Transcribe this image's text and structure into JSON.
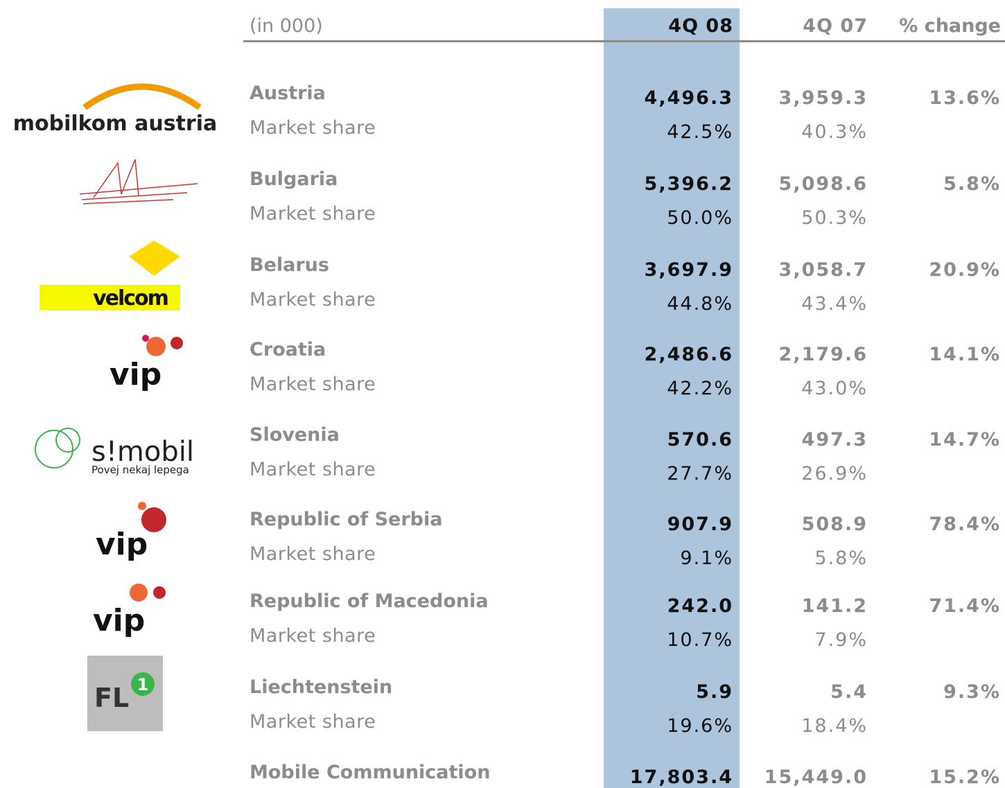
{
  "header": {
    "unit": "(in 000)",
    "columns": [
      "4Q 08",
      "4Q 07",
      "% change"
    ]
  },
  "rows": [
    {
      "country": "Austria",
      "share_label": "Market share",
      "values": [
        "4,496.3",
        "3,959.3",
        "13.6%"
      ],
      "share": [
        "42.5%",
        "40.3%"
      ]
    },
    {
      "country": "Bulgaria",
      "share_label": "Market share",
      "values": [
        "5,396.2",
        "5,098.6",
        "5.8%"
      ],
      "share": [
        "50.0%",
        "50.3%"
      ]
    },
    {
      "country": "Belarus",
      "share_label": "Market share",
      "values": [
        "3,697.9",
        "3,058.7",
        "20.9%"
      ],
      "share": [
        "44.8%",
        "43.4%"
      ]
    },
    {
      "country": "Croatia",
      "share_label": "Market share",
      "values": [
        "2,486.6",
        "2,179.6",
        "14.1%"
      ],
      "share": [
        "42.2%",
        "43.0%"
      ]
    },
    {
      "country": "Slovenia",
      "share_label": "Market share",
      "values": [
        "570.6",
        "497.3",
        "14.7%"
      ],
      "share": [
        "27.7%",
        "26.9%"
      ]
    },
    {
      "country": "Republic of Serbia",
      "share_label": "Market share",
      "values": [
        "907.9",
        "508.9",
        "78.4%"
      ],
      "share": [
        "9.1%",
        "5.8%"
      ]
    },
    {
      "country": "Republic of Macedonia",
      "share_label": "Market share",
      "values": [
        "242.0",
        "141.2",
        "71.4%"
      ],
      "share": [
        "10.7%",
        "7.9%"
      ]
    },
    {
      "country": "Liechtenstein",
      "share_label": "Market share",
      "values": [
        "5.9",
        "5.4",
        "9.3%"
      ],
      "share": [
        "19.6%",
        "18.4%"
      ]
    }
  ],
  "total": {
    "label": "Mobile Communication",
    "values": [
      "17,803.4",
      "15,449.0",
      "15.2%"
    ]
  },
  "logos": {
    "mobilkom": "mobilkom austria",
    "velcom": "velcom",
    "vip": "vip",
    "simobil": "s!mobil",
    "simobil_tagline": "Povej nekaj lepega",
    "fl1": "FL",
    "fl1_num": "1"
  }
}
